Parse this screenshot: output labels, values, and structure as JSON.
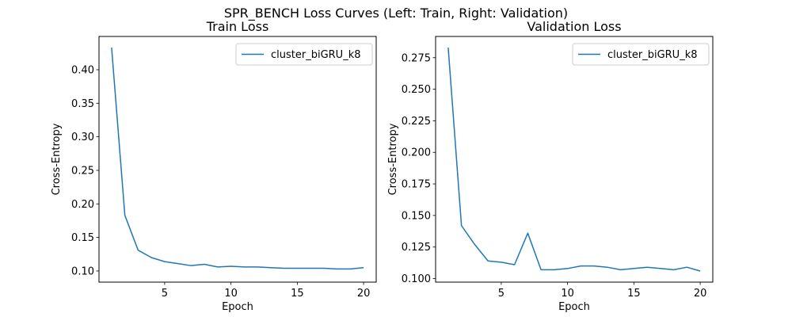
{
  "figure": {
    "suptitle": "SPR_BENCH Loss Curves (Left: Train, Right: Validation)"
  },
  "chart_data": [
    {
      "type": "line",
      "title": "Train Loss",
      "xlabel": "Epoch",
      "ylabel": "Cross-Entropy",
      "xlim": [
        0.05,
        20.95
      ],
      "ylim": [
        0.0834,
        0.4496
      ],
      "xticks": [
        5,
        10,
        15,
        20
      ],
      "yticks": [
        0.1,
        0.15,
        0.2,
        0.25,
        0.3,
        0.35,
        0.4
      ],
      "ytick_labels": [
        "0.10",
        "0.15",
        "0.20",
        "0.25",
        "0.30",
        "0.35",
        "0.40"
      ],
      "grid": false,
      "legend_position": "top-right",
      "x": [
        1,
        2,
        3,
        4,
        5,
        6,
        7,
        8,
        9,
        10,
        11,
        12,
        13,
        14,
        15,
        16,
        17,
        18,
        19,
        20
      ],
      "series": [
        {
          "name": "cluster_biGRU_k8",
          "color": "#1f77b4",
          "values": [
            0.433,
            0.183,
            0.131,
            0.12,
            0.114,
            0.111,
            0.108,
            0.11,
            0.106,
            0.107,
            0.106,
            0.106,
            0.105,
            0.104,
            0.104,
            0.104,
            0.104,
            0.103,
            0.103,
            0.105
          ]
        }
      ]
    },
    {
      "type": "line",
      "title": "Validation Loss",
      "xlabel": "Epoch",
      "ylabel": "Cross-Entropy",
      "xlim": [
        0.05,
        20.95
      ],
      "ylim": [
        0.0972,
        0.2918
      ],
      "xticks": [
        5,
        10,
        15,
        20
      ],
      "yticks": [
        0.1,
        0.125,
        0.15,
        0.175,
        0.2,
        0.225,
        0.25,
        0.275
      ],
      "ytick_labels": [
        "0.100",
        "0.125",
        "0.150",
        "0.175",
        "0.200",
        "0.225",
        "0.250",
        "0.275"
      ],
      "grid": false,
      "legend_position": "top-right",
      "x": [
        1,
        2,
        3,
        4,
        5,
        6,
        7,
        8,
        9,
        10,
        11,
        12,
        13,
        14,
        15,
        16,
        17,
        18,
        19,
        20
      ],
      "series": [
        {
          "name": "cluster_biGRU_k8",
          "color": "#1f77b4",
          "values": [
            0.283,
            0.142,
            0.127,
            0.114,
            0.113,
            0.111,
            0.136,
            0.107,
            0.107,
            0.108,
            0.11,
            0.11,
            0.109,
            0.107,
            0.108,
            0.109,
            0.108,
            0.107,
            0.109,
            0.106
          ]
        }
      ]
    }
  ]
}
